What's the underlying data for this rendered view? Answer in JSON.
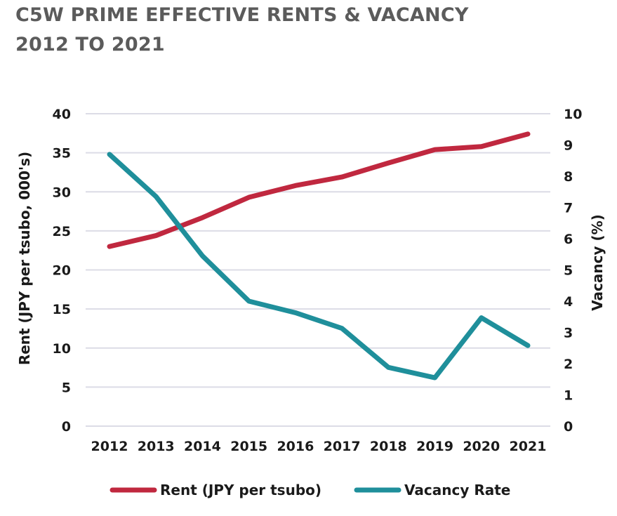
{
  "chart_data": {
    "type": "line",
    "title": "C5W PRIME EFFECTIVE RENTS & VACANCY",
    "subtitle": "2012 TO 2021",
    "categories": [
      "2012",
      "2013",
      "2014",
      "2015",
      "2016",
      "2017",
      "2018",
      "2019",
      "2020",
      "2021"
    ],
    "y_left": {
      "label": "Rent (JPY per tsubo, 000's)",
      "range": [
        0,
        40
      ],
      "ticks": [
        "0",
        "5",
        "10",
        "15",
        "20",
        "25",
        "30",
        "35",
        "40"
      ]
    },
    "y_right": {
      "label": "Vacancy (%)",
      "range": [
        0,
        10
      ],
      "ticks": [
        "0",
        "1",
        "2",
        "3",
        "4",
        "5",
        "6",
        "7",
        "8",
        "9",
        "10"
      ]
    },
    "grid": true,
    "legend_position": "bottom",
    "series": [
      {
        "name": "Rent (JPY per tsubo)",
        "axis": "left",
        "color": "#c0283f",
        "values": [
          23.0,
          24.4,
          26.7,
          29.3,
          30.8,
          31.9,
          33.7,
          35.4,
          35.8,
          37.4
        ]
      },
      {
        "name": "Vacancy Rate",
        "axis": "right",
        "color": "#1f8f9b",
        "values": [
          8.7,
          7.35,
          5.45,
          4.0,
          3.63,
          3.13,
          1.88,
          1.55,
          3.47,
          2.58
        ]
      }
    ]
  }
}
